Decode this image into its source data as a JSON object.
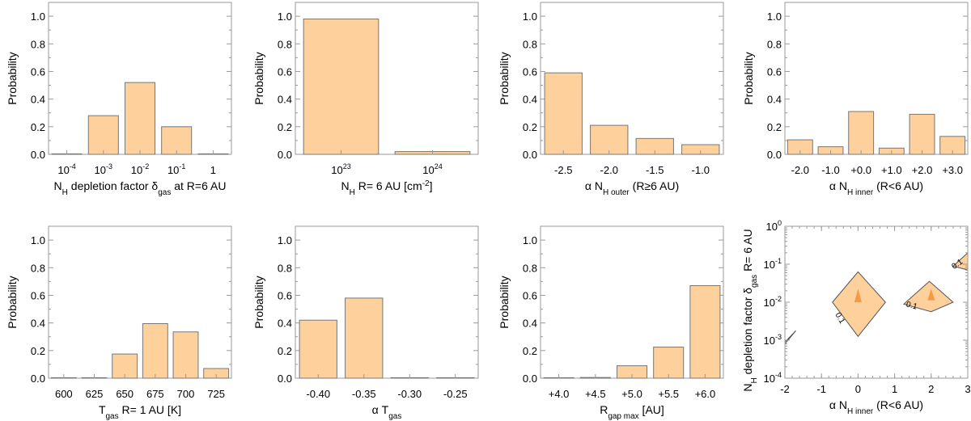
{
  "chart_data": [
    {
      "type": "bar",
      "categories": [
        {
          "base": "10",
          "sup": "-4"
        },
        {
          "base": "10",
          "sup": "-3"
        },
        {
          "base": "10",
          "sup": "-2"
        },
        {
          "base": "10",
          "sup": "-1"
        },
        {
          "base": "1",
          "sup": ""
        }
      ],
      "values": [
        0.0,
        0.28,
        0.52,
        0.2,
        0.0
      ],
      "ylabel": "Probability",
      "xlabel_parts": [
        {
          "t": "N"
        },
        {
          "t": "H",
          "s": "sub"
        },
        {
          "t": " depletion factor δ"
        },
        {
          "t": "gas",
          "s": "sub"
        },
        {
          "t": " at R=6 AU"
        }
      ],
      "yticks": [
        "0.0",
        "0.2",
        "0.4",
        "0.6",
        "0.8",
        "1.0"
      ],
      "ylim": [
        0,
        1.1
      ]
    },
    {
      "type": "bar",
      "categories": [
        {
          "base": "10",
          "sup": "23"
        },
        {
          "base": "10",
          "sup": "24"
        }
      ],
      "values": [
        0.98,
        0.02
      ],
      "ylabel": "Probability",
      "xlabel_parts": [
        {
          "t": "N"
        },
        {
          "t": "H",
          "s": "sub"
        },
        {
          "t": " R= 6 AU [cm"
        },
        {
          "t": "-2",
          "s": "sup"
        },
        {
          "t": "]"
        }
      ],
      "yticks": [
        "0.0",
        "0.2",
        "0.4",
        "0.6",
        "0.8",
        "1.0"
      ],
      "ylim": [
        0,
        1.1
      ]
    },
    {
      "type": "bar",
      "categories": [
        {
          "base": "-2.5"
        },
        {
          "base": "-2.0"
        },
        {
          "base": "-1.5"
        },
        {
          "base": "-1.0"
        }
      ],
      "values": [
        0.59,
        0.21,
        0.115,
        0.07
      ],
      "ylabel": "Probability",
      "xlabel_parts": [
        {
          "t": "α N"
        },
        {
          "t": "H outer",
          "s": "sub"
        },
        {
          "t": " (R≥6 AU)"
        }
      ],
      "yticks": [
        "0.0",
        "0.2",
        "0.4",
        "0.6",
        "0.8",
        "1.0"
      ],
      "ylim": [
        0,
        1.1
      ]
    },
    {
      "type": "bar",
      "categories": [
        {
          "base": "-2.0"
        },
        {
          "base": "-1.0"
        },
        {
          "base": "+0.0"
        },
        {
          "base": "+1.0"
        },
        {
          "base": "+2.0"
        },
        {
          "base": "+3.0"
        }
      ],
      "values": [
        0.105,
        0.055,
        0.31,
        0.045,
        0.29,
        0.13
      ],
      "ylabel": "Probability",
      "xlabel_parts": [
        {
          "t": "α N"
        },
        {
          "t": "H inner",
          "s": "sub"
        },
        {
          "t": " (R<6 AU)"
        }
      ],
      "yticks": [
        "0.0",
        "0.2",
        "0.4",
        "0.6",
        "0.8",
        "1.0"
      ],
      "ylim": [
        0,
        1.1
      ]
    },
    {
      "type": "bar",
      "categories": [
        {
          "base": "600"
        },
        {
          "base": "625"
        },
        {
          "base": "650"
        },
        {
          "base": "675"
        },
        {
          "base": "700"
        },
        {
          "base": "725"
        }
      ],
      "values": [
        0.0,
        0.0,
        0.175,
        0.395,
        0.335,
        0.07
      ],
      "ylabel": "Probability",
      "xlabel_parts": [
        {
          "t": "T"
        },
        {
          "t": "gas",
          "s": "sub"
        },
        {
          "t": " R= 1 AU [K]"
        }
      ],
      "yticks": [
        "0.0",
        "0.2",
        "0.4",
        "0.6",
        "0.8",
        "1.0"
      ],
      "ylim": [
        0,
        1.1
      ]
    },
    {
      "type": "bar",
      "categories": [
        {
          "base": "-0.40"
        },
        {
          "base": "-0.35"
        },
        {
          "base": "-0.30"
        },
        {
          "base": "-0.25"
        }
      ],
      "values": [
        0.42,
        0.58,
        0.0,
        0.0
      ],
      "ylabel": "Probability",
      "xlabel_parts": [
        {
          "t": "α T"
        },
        {
          "t": "gas",
          "s": "sub"
        }
      ],
      "yticks": [
        "0.0",
        "0.2",
        "0.4",
        "0.6",
        "0.8",
        "1.0"
      ],
      "ylim": [
        0,
        1.1
      ]
    },
    {
      "type": "bar",
      "categories": [
        {
          "base": "+4.0"
        },
        {
          "base": "+4.5"
        },
        {
          "base": "+5.0"
        },
        {
          "base": "+5.5"
        },
        {
          "base": "+6.0"
        }
      ],
      "values": [
        0.0,
        0.005,
        0.09,
        0.225,
        0.67
      ],
      "ylabel": "Probability",
      "xlabel_parts": [
        {
          "t": "R"
        },
        {
          "t": "gap max",
          "s": "sub"
        },
        {
          "t": " [AU]"
        }
      ],
      "yticks": [
        "0.0",
        "0.2",
        "0.4",
        "0.6",
        "0.8",
        "1.0"
      ],
      "ylim": [
        0,
        1.1
      ]
    },
    {
      "type": "contour",
      "xticks": [
        "-2",
        "-1",
        "0",
        "1",
        "2",
        "3"
      ],
      "xlim": [
        -2,
        3
      ],
      "ylim_log10": [
        -4,
        0
      ],
      "yticks": [
        {
          "base": "10",
          "sup": "0"
        },
        {
          "base": "10",
          "sup": "-1"
        },
        {
          "base": "10",
          "sup": "-2"
        },
        {
          "base": "10",
          "sup": "-3"
        },
        {
          "base": "10",
          "sup": "-4"
        }
      ],
      "xlabel_parts": [
        {
          "t": "α N"
        },
        {
          "t": "H inner",
          "s": "sub"
        },
        {
          "t": " (R<6 AU)"
        }
      ],
      "ylabel_parts": [
        {
          "t": "N"
        },
        {
          "t": "H",
          "s": "sub"
        },
        {
          "t": " depletion factor δ"
        },
        {
          "t": "gas",
          "s": "sub"
        },
        {
          "t": " R= 6 AU"
        }
      ],
      "contour_label": "0.1",
      "regions": [
        {
          "x": [
            -0.7,
            0.0,
            0.75,
            0.0
          ],
          "y_log10": [
            -2.0,
            -1.2,
            -2.0,
            -2.9
          ]
        },
        {
          "x": [
            1.25,
            1.95,
            2.6,
            2.0
          ],
          "y_log10": [
            -2.05,
            -1.45,
            -2.0,
            -2.25
          ]
        },
        {
          "x": [
            2.6,
            3.0,
            3.0
          ],
          "y_log10": [
            -1.05,
            -0.7,
            -1.15
          ]
        },
        {
          "x": [
            -2.0,
            -1.7,
            -2.0
          ],
          "y_log10": [
            -3.1,
            -2.75,
            -3.05
          ]
        }
      ],
      "peaks": [
        {
          "x": [
            0.0,
            -0.1,
            0.1
          ],
          "y_log10": [
            -1.65,
            -2.0,
            -2.0
          ]
        },
        {
          "x": [
            2.0,
            1.9,
            2.1
          ],
          "y_log10": [
            -1.65,
            -1.95,
            -1.95
          ]
        }
      ],
      "colors": {
        "fill": "#fdd09c",
        "peak": "#f59a45",
        "edge": "#555555"
      }
    }
  ],
  "colors": {
    "bar_fill": "#fdd09c",
    "bar_edge": "#777777",
    "frame": "#999999"
  }
}
